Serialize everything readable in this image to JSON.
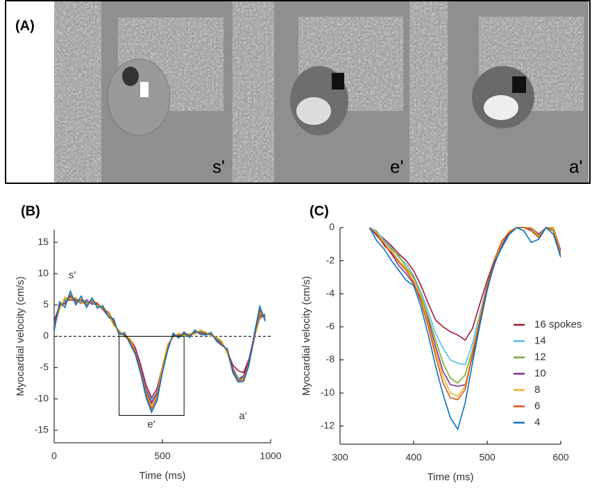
{
  "panel_a": {
    "label": "(A)",
    "frames": [
      "s'",
      "e'",
      "a'"
    ]
  },
  "chart_data": [
    {
      "type": "line",
      "label": "(B)",
      "x_label": "Time (ms)",
      "y_label": "Myocardial velocity (cm/s)",
      "annotations": [
        "s'",
        "e'",
        "a'"
      ],
      "xlim": [
        0,
        1000
      ],
      "ylim": [
        -17,
        17
      ],
      "xticks": [
        0,
        500,
        1000
      ],
      "yticks": [
        -15,
        -10,
        -5,
        0,
        5,
        10,
        15
      ],
      "x": [
        0,
        25,
        50,
        75,
        100,
        125,
        150,
        175,
        200,
        225,
        250,
        275,
        300,
        325,
        350,
        375,
        400,
        425,
        450,
        475,
        500,
        525,
        550,
        575,
        600,
        625,
        650,
        675,
        700,
        725,
        750,
        775,
        800,
        825,
        850,
        875,
        900,
        925,
        950,
        975
      ],
      "series": [
        {
          "name": "16 spokes",
          "color": "#a2142f",
          "values": [
            2.5,
            4.8,
            5.6,
            5.8,
            5.7,
            5.5,
            5.4,
            5.3,
            5.0,
            4.4,
            3.3,
            1.9,
            0.8,
            0.1,
            -0.4,
            -1.8,
            -4.6,
            -7.8,
            -9.8,
            -8.4,
            -4.8,
            -1.4,
            0.0,
            0.3,
            0.3,
            0.4,
            0.5,
            0.7,
            0.5,
            0.2,
            -0.3,
            -1.0,
            -2.4,
            -4.6,
            -5.5,
            -5.8,
            -3.6,
            0.2,
            2.9,
            3.4
          ]
        },
        {
          "name": "14",
          "color": "#4dbeee",
          "values": [
            2.2,
            4.6,
            5.7,
            6.1,
            5.8,
            5.4,
            5.6,
            5.2,
            5.1,
            4.5,
            3.4,
            2.1,
            0.7,
            0.0,
            -0.6,
            -2.1,
            -5.0,
            -8.3,
            -10.2,
            -8.9,
            -5.1,
            -1.6,
            0.1,
            0.2,
            0.1,
            0.3,
            0.6,
            0.8,
            0.4,
            0.1,
            -0.4,
            -1.1,
            -2.6,
            -5.1,
            -6.6,
            -6.4,
            -3.9,
            0.1,
            3.1,
            3.6
          ]
        },
        {
          "name": "12",
          "color": "#77ac30",
          "values": [
            1.8,
            4.4,
            5.9,
            6.2,
            5.6,
            5.7,
            5.3,
            5.5,
            4.9,
            4.6,
            3.6,
            1.8,
            0.9,
            -0.1,
            -0.5,
            -2.2,
            -5.2,
            -8.7,
            -10.5,
            -9.2,
            -5.0,
            -1.4,
            -0.1,
            0.4,
            0.2,
            0.2,
            0.4,
            0.9,
            0.6,
            0.3,
            -0.2,
            -0.9,
            -2.7,
            -5.2,
            -6.9,
            -6.6,
            -4.1,
            -0.2,
            3.3,
            3.2
          ]
        },
        {
          "name": "10",
          "color": "#7e2f8e",
          "values": [
            2.0,
            4.9,
            5.3,
            6.4,
            5.9,
            5.2,
            5.8,
            5.1,
            5.2,
            4.3,
            3.2,
            2.2,
            0.6,
            0.2,
            -0.7,
            -1.9,
            -4.9,
            -8.6,
            -10.7,
            -9.0,
            -5.3,
            -1.7,
            0.2,
            0.1,
            0.4,
            0.1,
            0.7,
            0.6,
            0.4,
            0.3,
            -0.5,
            -1.2,
            -2.3,
            -5.0,
            -7.0,
            -6.3,
            -3.8,
            0.3,
            3.5,
            3.0
          ]
        },
        {
          "name": "8",
          "color": "#edb120",
          "values": [
            1.5,
            4.2,
            6.3,
            5.9,
            6.2,
            5.3,
            5.2,
            5.6,
            4.8,
            4.7,
            3.7,
            1.7,
            1.0,
            -0.2,
            -0.3,
            -2.4,
            -5.4,
            -9.0,
            -11.2,
            -9.5,
            -4.7,
            -1.2,
            -0.2,
            0.5,
            0.0,
            0.4,
            0.3,
            1.0,
            0.7,
            0.0,
            -0.1,
            -0.8,
            -2.8,
            -5.4,
            -7.1,
            -6.8,
            -4.3,
            0.0,
            3.8,
            2.8
          ]
        },
        {
          "name": "6",
          "color": "#d95319",
          "values": [
            1.2,
            5.1,
            5.1,
            6.6,
            5.4,
            5.9,
            5.0,
            5.7,
            5.3,
            4.2,
            3.9,
            2.4,
            0.5,
            0.3,
            -0.8,
            -2.5,
            -5.6,
            -9.3,
            -11.6,
            -9.8,
            -5.5,
            -1.9,
            0.3,
            0.0,
            0.5,
            0.0,
            0.8,
            0.5,
            0.3,
            0.4,
            -0.6,
            -1.3,
            -2.2,
            -5.5,
            -7.2,
            -6.9,
            -4.4,
            -0.3,
            4.2,
            2.6
          ]
        },
        {
          "name": "4",
          "color": "#0072bd",
          "values": [
            0.8,
            5.5,
            4.6,
            7.2,
            5.0,
            6.4,
            4.6,
            6.1,
            4.5,
            4.9,
            3.1,
            2.8,
            0.2,
            0.6,
            -1.2,
            -2.9,
            -6.0,
            -9.8,
            -12.1,
            -10.3,
            -5.8,
            -2.2,
            0.5,
            -0.3,
            0.7,
            -0.2,
            1.0,
            0.3,
            0.2,
            0.6,
            -0.8,
            -1.5,
            -2.0,
            -5.8,
            -7.3,
            -7.2,
            -4.6,
            0.5,
            4.8,
            2.4
          ]
        }
      ]
    },
    {
      "type": "line",
      "label": "(C)",
      "x_label": "Time (ms)",
      "y_label": "Myocardial velocity (cm/s)",
      "xlim": [
        300,
        600
      ],
      "ylim": [
        -13.1,
        0
      ],
      "xticks": [
        300,
        400,
        500,
        600
      ],
      "yticks": [
        -12,
        -10,
        -8,
        -6,
        -4,
        -2,
        0
      ],
      "x": [
        340,
        350,
        360,
        370,
        380,
        390,
        400,
        410,
        420,
        430,
        440,
        450,
        460,
        470,
        480,
        490,
        500,
        510,
        520,
        530,
        540,
        550,
        560,
        570,
        580,
        590,
        600
      ],
      "series": [
        {
          "name": "16 spokes",
          "color": "#a2142f",
          "values": [
            0,
            -0.3,
            -0.7,
            -1.1,
            -1.6,
            -2.0,
            -2.6,
            -3.5,
            -4.6,
            -5.6,
            -6.0,
            -6.3,
            -6.5,
            -6.8,
            -6.1,
            -4.6,
            -3.2,
            -1.9,
            -1.0,
            -0.3,
            0,
            0,
            0,
            -0.4,
            0,
            0,
            -1.4
          ]
        },
        {
          "name": "14",
          "color": "#4dbeee",
          "values": [
            0,
            -0.2,
            -0.8,
            -1.2,
            -1.8,
            -2.2,
            -2.9,
            -3.9,
            -5.1,
            -6.4,
            -7.3,
            -8.0,
            -8.2,
            -8.3,
            -7.0,
            -5.2,
            -3.4,
            -2.0,
            -0.9,
            -0.2,
            0,
            0,
            -0.2,
            -0.5,
            0,
            0,
            -1.5
          ]
        },
        {
          "name": "12",
          "color": "#77ac30",
          "values": [
            0,
            -0.4,
            -0.9,
            -1.3,
            -1.7,
            -2.4,
            -3.0,
            -4.1,
            -5.4,
            -6.8,
            -8.2,
            -9.1,
            -9.4,
            -8.9,
            -7.4,
            -5.5,
            -3.6,
            -2.1,
            -1.0,
            -0.4,
            0,
            0,
            0,
            -0.6,
            0,
            -0.1,
            -1.6
          ]
        },
        {
          "name": "10",
          "color": "#7e2f8e",
          "values": [
            0,
            -0.5,
            -1.0,
            -1.6,
            -2.3,
            -2.8,
            -3.4,
            -4.3,
            -5.6,
            -7.2,
            -8.7,
            -9.5,
            -9.6,
            -9.5,
            -7.8,
            -5.7,
            -3.7,
            -2.2,
            -1.1,
            -0.3,
            0,
            0,
            -0.1,
            -0.4,
            0,
            0,
            -1.5
          ]
        },
        {
          "name": "8",
          "color": "#edb120",
          "values": [
            0,
            -0.3,
            -0.9,
            -1.4,
            -2.0,
            -2.5,
            -3.1,
            -4.2,
            -5.8,
            -7.5,
            -9.0,
            -10.0,
            -10.2,
            -9.6,
            -7.6,
            -5.4,
            -3.5,
            -2.0,
            -0.9,
            -0.2,
            0,
            0,
            0,
            -0.5,
            0,
            0,
            -1.6
          ]
        },
        {
          "name": "6",
          "color": "#d95319",
          "values": [
            0,
            -0.4,
            -1.1,
            -1.5,
            -2.1,
            -2.6,
            -3.3,
            -4.5,
            -6.0,
            -7.8,
            -9.4,
            -10.3,
            -10.4,
            -9.8,
            -7.7,
            -5.6,
            -3.5,
            -1.9,
            -0.8,
            -0.3,
            0,
            0,
            -0.2,
            -0.6,
            0,
            -0.2,
            -1.7
          ]
        },
        {
          "name": "4",
          "color": "#0072bd",
          "values": [
            0,
            -0.8,
            -1.3,
            -2.0,
            -2.6,
            -3.2,
            -3.5,
            -4.8,
            -6.5,
            -8.4,
            -10.1,
            -11.5,
            -12.2,
            -10.6,
            -8.2,
            -5.9,
            -3.8,
            -2.1,
            -1.2,
            -0.4,
            0,
            -0.2,
            -0.9,
            -0.7,
            0,
            -0.4,
            -1.8
          ]
        }
      ]
    }
  ]
}
